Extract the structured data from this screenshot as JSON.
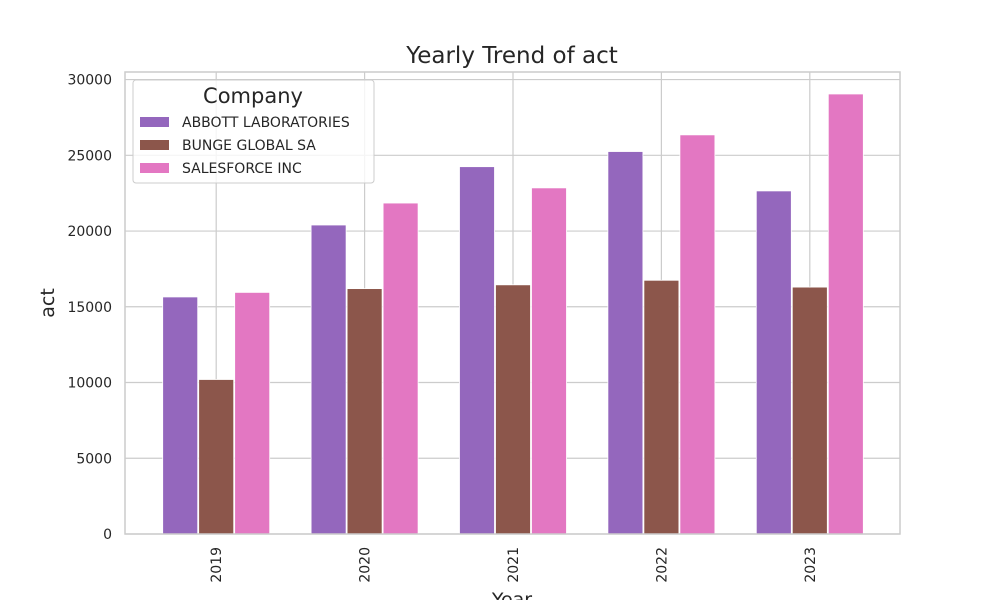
{
  "chart_data": {
    "type": "bar",
    "title": "Yearly Trend of act",
    "xlabel": "Year",
    "ylabel": "act",
    "categories": [
      "2019",
      "2020",
      "2021",
      "2022",
      "2023"
    ],
    "ylim": [
      0,
      30500
    ],
    "yticks": [
      0,
      5000,
      10000,
      15000,
      20000,
      25000,
      30000
    ],
    "grid": true,
    "legend": {
      "title": "Company",
      "placement": "top-left"
    },
    "series": [
      {
        "name": "ABBOTT LABORATORIES",
        "color": "#9467bd",
        "values": [
          15650,
          20400,
          24250,
          25250,
          22650
        ]
      },
      {
        "name": "BUNGE GLOBAL SA",
        "color": "#8c564b",
        "values": [
          10200,
          16200,
          16450,
          16750,
          16300
        ]
      },
      {
        "name": "SALESFORCE INC",
        "color": "#e377c2",
        "values": [
          15950,
          21850,
          22850,
          26350,
          29050
        ]
      }
    ]
  }
}
